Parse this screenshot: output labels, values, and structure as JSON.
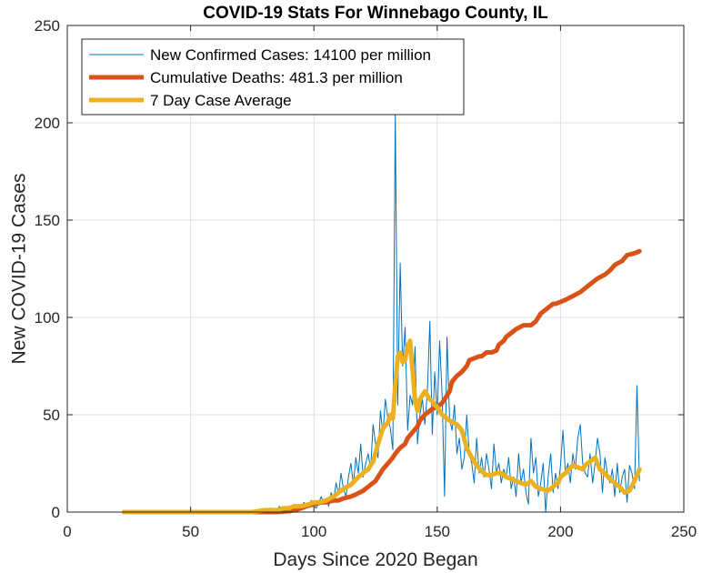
{
  "chart_data": {
    "type": "line",
    "title": "COVID-19 Stats For Winnebago County, IL",
    "xlabel": "Days Since 2020 Began",
    "ylabel": "New COVID-19 Cases",
    "xlim": [
      0,
      250
    ],
    "ylim": [
      0,
      250
    ],
    "xticks": [
      0,
      50,
      100,
      150,
      200,
      250
    ],
    "yticks": [
      0,
      50,
      100,
      150,
      200,
      250
    ],
    "grid": true,
    "legend_position": "top-left",
    "series": [
      {
        "name": "New Confirmed Cases: 14100 per million",
        "color": "#0072BD",
        "width": 1,
        "x": [
          23,
          30,
          40,
          50,
          60,
          70,
          75,
          78,
          80,
          82,
          84,
          85,
          86,
          87,
          88,
          89,
          90,
          91,
          92,
          93,
          94,
          95,
          96,
          97,
          98,
          99,
          100,
          101,
          102,
          103,
          104,
          105,
          106,
          107,
          108,
          109,
          110,
          111,
          112,
          113,
          114,
          115,
          116,
          117,
          118,
          119,
          120,
          121,
          122,
          123,
          124,
          125,
          126,
          127,
          128,
          129,
          130,
          131,
          132,
          133,
          134,
          135,
          136,
          137,
          138,
          139,
          140,
          141,
          142,
          143,
          144,
          145,
          146,
          147,
          148,
          149,
          150,
          151,
          152,
          153,
          154,
          155,
          156,
          157,
          158,
          159,
          160,
          161,
          162,
          163,
          164,
          165,
          166,
          167,
          168,
          169,
          170,
          171,
          172,
          173,
          174,
          175,
          176,
          177,
          178,
          179,
          180,
          181,
          182,
          183,
          184,
          185,
          186,
          187,
          188,
          189,
          190,
          191,
          192,
          193,
          194,
          195,
          196,
          197,
          198,
          199,
          200,
          201,
          202,
          203,
          204,
          205,
          206,
          207,
          208,
          209,
          210,
          211,
          212,
          213,
          214,
          215,
          216,
          217,
          218,
          219,
          220,
          221,
          222,
          223,
          224,
          225,
          226,
          227,
          228,
          229,
          230,
          231,
          232
        ],
        "y": [
          0,
          0,
          0,
          0,
          0,
          0,
          0,
          1,
          0,
          2,
          0,
          1,
          3,
          0,
          2,
          1,
          3,
          0,
          4,
          2,
          1,
          3,
          5,
          2,
          4,
          6,
          3,
          2,
          5,
          8,
          4,
          7,
          3,
          10,
          6,
          15,
          9,
          20,
          12,
          8,
          18,
          25,
          14,
          28,
          20,
          35,
          18,
          25,
          30,
          22,
          45,
          35,
          28,
          52,
          40,
          58,
          48,
          43,
          32,
          205,
          55,
          128,
          75,
          95,
          42,
          60,
          55,
          85,
          35,
          50,
          58,
          45,
          62,
          98,
          40,
          72,
          50,
          88,
          60,
          8,
          90,
          48,
          42,
          55,
          30,
          38,
          22,
          28,
          50,
          30,
          25,
          15,
          38,
          20,
          28,
          18,
          30,
          22,
          12,
          35,
          20,
          25,
          15,
          22,
          18,
          28,
          12,
          18,
          8,
          30,
          15,
          22,
          10,
          4,
          38,
          20,
          28,
          8,
          15,
          25,
          0,
          18,
          30,
          10,
          20,
          12,
          24,
          42,
          20,
          25,
          15,
          30,
          22,
          38,
          45,
          25,
          20,
          18,
          30,
          15,
          25,
          38,
          30,
          10,
          28,
          20,
          15,
          22,
          8,
          25,
          10,
          18,
          22,
          5,
          24,
          20,
          12,
          65,
          16
        ]
      },
      {
        "name": "Cumulative Deaths: 481.3 per million",
        "color": "#D95319",
        "width": 5,
        "x": [
          23,
          40,
          60,
          80,
          85,
          90,
          92,
          95,
          97,
          100,
          103,
          105,
          108,
          110,
          112,
          115,
          117,
          120,
          122,
          125,
          127,
          128,
          130,
          132,
          133,
          135,
          137,
          138,
          140,
          142,
          143,
          145,
          147,
          148,
          150,
          152,
          153,
          155,
          156,
          158,
          160,
          162,
          163,
          165,
          167,
          168,
          170,
          172,
          174,
          175,
          177,
          178,
          180,
          182,
          185,
          188,
          190,
          192,
          195,
          197,
          198,
          200,
          202,
          205,
          208,
          210,
          212,
          215,
          218,
          220,
          222,
          225,
          227,
          230,
          232
        ],
        "y": [
          0,
          0,
          0,
          0,
          0,
          0.5,
          1,
          2,
          3,
          4,
          5,
          5,
          6,
          6,
          7,
          8,
          9,
          11,
          13,
          16,
          20,
          22,
          25,
          28,
          30,
          33,
          35,
          38,
          41,
          44,
          47,
          50,
          52,
          53,
          54,
          56,
          58,
          62,
          67,
          70,
          72,
          75,
          78,
          79,
          80,
          80,
          82,
          82,
          83,
          86,
          88,
          90,
          92,
          94,
          96,
          96,
          98,
          102,
          105,
          107,
          107,
          108,
          109,
          111,
          113,
          115,
          117,
          120,
          122,
          124,
          127,
          129,
          132,
          133,
          134
        ]
      },
      {
        "name": "7 Day Case Average",
        "color": "#EDB120",
        "width": 5,
        "x": [
          23,
          40,
          60,
          75,
          80,
          85,
          88,
          90,
          92,
          95,
          98,
          100,
          102,
          105,
          108,
          110,
          112,
          115,
          118,
          120,
          122,
          124,
          126,
          128,
          130,
          131,
          132,
          133,
          134,
          135,
          136,
          137,
          138,
          139,
          140,
          141,
          142,
          143,
          144,
          145,
          146,
          147,
          148,
          149,
          150,
          152,
          155,
          158,
          160,
          162,
          164,
          166,
          168,
          170,
          172,
          174,
          176,
          178,
          180,
          182,
          184,
          186,
          188,
          190,
          192,
          195,
          197,
          199,
          200,
          202,
          205,
          207,
          209,
          210,
          212,
          214,
          216,
          218,
          220,
          222,
          224,
          226,
          228,
          230,
          232
        ],
        "y": [
          0,
          0,
          0,
          0,
          1,
          1,
          2,
          2,
          3,
          3,
          4,
          5,
          5,
          6,
          8,
          10,
          12,
          14,
          18,
          20,
          22,
          26,
          35,
          43,
          46,
          50,
          48,
          65,
          80,
          82,
          77,
          78,
          85,
          88,
          73,
          58,
          52,
          58,
          60,
          62,
          60,
          58,
          57,
          55,
          54,
          50,
          47,
          45,
          42,
          33,
          28,
          24,
          21,
          19,
          19,
          20,
          20,
          18,
          17,
          16,
          15,
          14,
          16,
          13,
          12,
          11,
          13,
          15,
          18,
          20,
          24,
          23,
          22,
          24,
          26,
          28,
          22,
          20,
          17,
          15,
          13,
          10,
          11,
          16,
          22
        ]
      }
    ]
  }
}
